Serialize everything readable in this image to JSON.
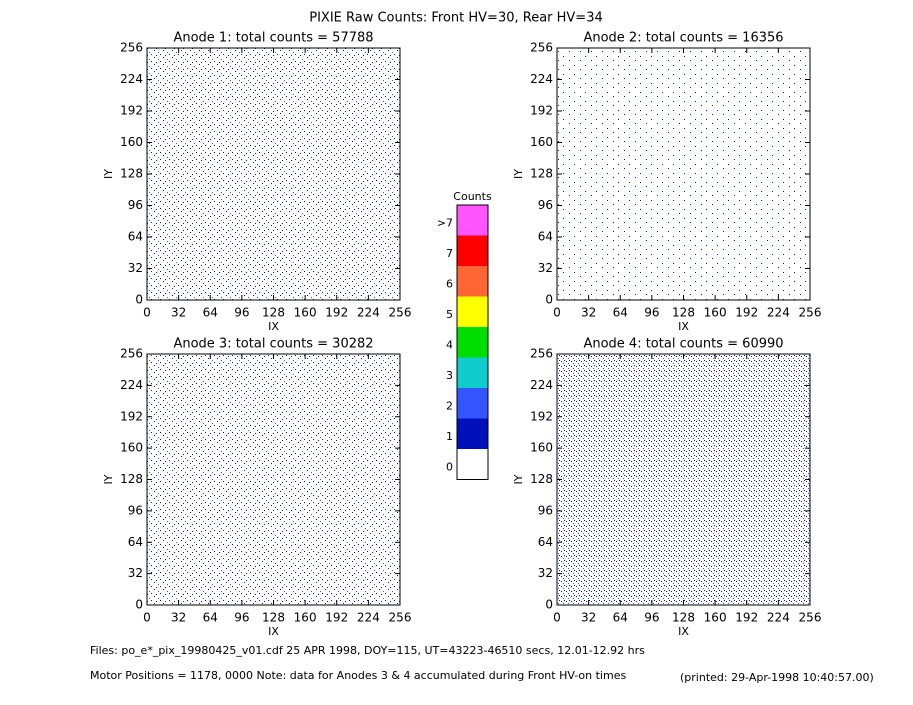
{
  "title": "PIXIE Raw Counts:  Front HV=30, Rear HV=34",
  "footer": [
    "Files: po_e*_pix_19980425_v01.cdf    25 APR 1998, DOY=115, UT=43223-46510 secs, 12.01-12.92 hrs",
    "Motor Positions = 1178, 0000   Note: data for Anodes 3 & 4 accumulated during Front HV-on times",
    "(printed: 29-Apr-1998 10:40:57.00)"
  ],
  "chart_data": [
    {
      "type": "heatmap",
      "title": "Anode 1: total counts = 57788",
      "xlabel": "IX",
      "ylabel": "IY",
      "xlim": [
        0,
        256
      ],
      "ylim": [
        0,
        256
      ],
      "xticks": [
        0,
        32,
        64,
        96,
        128,
        160,
        192,
        224,
        256
      ],
      "yticks": [
        0,
        32,
        64,
        96,
        128,
        160,
        192,
        224,
        256
      ]
    },
    {
      "type": "heatmap",
      "title": "Anode 2: total counts = 16356",
      "xlabel": "IX",
      "ylabel": "IY",
      "xlim": [
        0,
        256
      ],
      "ylim": [
        0,
        256
      ],
      "xticks": [
        0,
        32,
        64,
        96,
        128,
        160,
        192,
        224,
        256
      ],
      "yticks": [
        0,
        32,
        64,
        96,
        128,
        160,
        192,
        224,
        256
      ]
    },
    {
      "type": "heatmap",
      "title": "Anode 3: total counts = 30282",
      "xlabel": "IX",
      "ylabel": "IY",
      "xlim": [
        0,
        256
      ],
      "ylim": [
        0,
        256
      ],
      "xticks": [
        0,
        32,
        64,
        96,
        128,
        160,
        192,
        224,
        256
      ],
      "yticks": [
        0,
        32,
        64,
        96,
        128,
        160,
        192,
        224,
        256
      ]
    },
    {
      "type": "heatmap",
      "title": "Anode 4: total counts = 60990",
      "xlabel": "IX",
      "ylabel": "IY",
      "xlim": [
        0,
        256
      ],
      "ylim": [
        0,
        256
      ],
      "xticks": [
        0,
        32,
        64,
        96,
        128,
        160,
        192,
        224,
        256
      ],
      "yticks": [
        0,
        32,
        64,
        96,
        128,
        160,
        192,
        224,
        256
      ]
    },
    {
      "type": "colorbar",
      "title": "Counts",
      "categories": [
        ">7",
        "7",
        "6",
        "5",
        "4",
        "3",
        "2",
        "1",
        "0"
      ],
      "colors": [
        "#ff55ff",
        "#ff0000",
        "#ff6633",
        "#ffff00",
        "#00dd00",
        "#11cccc",
        "#3355ff",
        "#0011bb",
        "#ffffff"
      ]
    }
  ]
}
